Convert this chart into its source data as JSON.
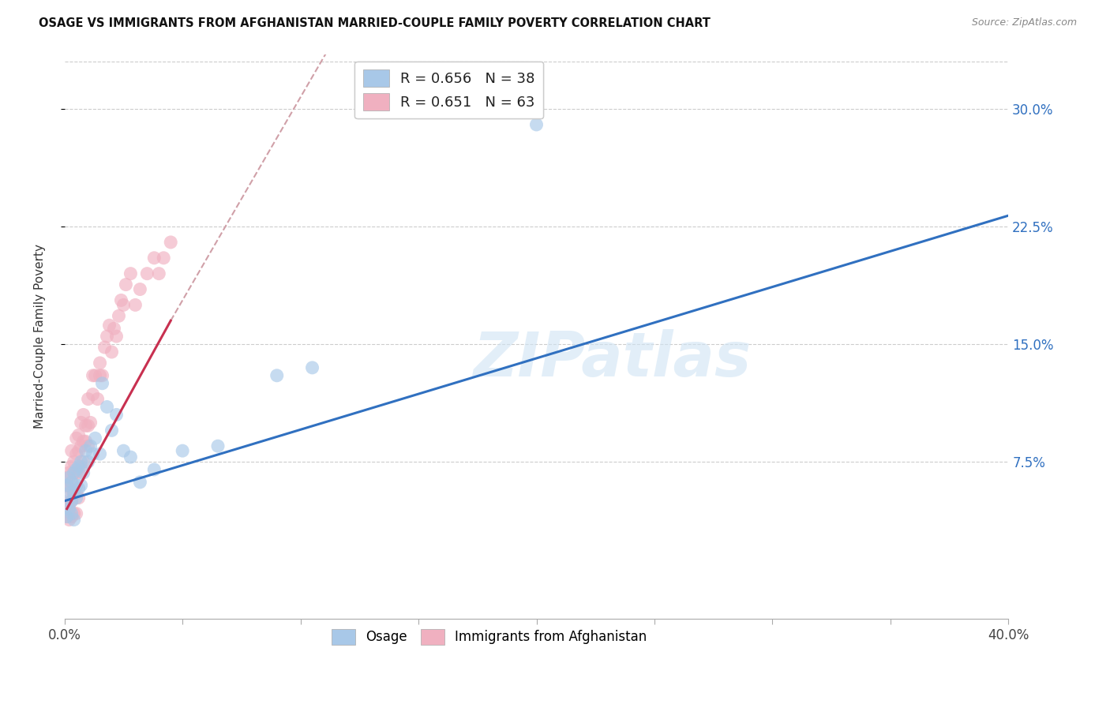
{
  "title": "OSAGE VS IMMIGRANTS FROM AFGHANISTAN MARRIED-COUPLE FAMILY POVERTY CORRELATION CHART",
  "source": "Source: ZipAtlas.com",
  "ylabel": "Married-Couple Family Poverty",
  "xlim": [
    0.0,
    0.4
  ],
  "ylim": [
    -0.025,
    0.335
  ],
  "yticks": [
    0.075,
    0.15,
    0.225,
    0.3
  ],
  "xticks": [
    0.0,
    0.4
  ],
  "xtick_labels": [
    "0.0%",
    "40.0%"
  ],
  "ytick_labels": [
    "7.5%",
    "15.0%",
    "22.5%",
    "30.0%"
  ],
  "legend_R1": "R = 0.656",
  "legend_N1": "N = 38",
  "legend_R2": "R = 0.651",
  "legend_N2": "N = 63",
  "color_blue": "#a8c8e8",
  "color_pink": "#f0b0c0",
  "color_trendline_blue": "#3070c0",
  "color_trendline_pink": "#c83050",
  "color_trendline_dashed": "#d0a0a8",
  "watermark": "ZIPatlas",
  "osage_x": [
    0.001,
    0.001,
    0.002,
    0.002,
    0.002,
    0.003,
    0.003,
    0.003,
    0.004,
    0.004,
    0.004,
    0.005,
    0.005,
    0.005,
    0.006,
    0.006,
    0.007,
    0.007,
    0.008,
    0.009,
    0.01,
    0.011,
    0.012,
    0.013,
    0.015,
    0.016,
    0.018,
    0.02,
    0.022,
    0.025,
    0.028,
    0.032,
    0.038,
    0.05,
    0.065,
    0.09,
    0.105,
    0.2
  ],
  "osage_y": [
    0.04,
    0.06,
    0.045,
    0.055,
    0.065,
    0.042,
    0.05,
    0.062,
    0.055,
    0.068,
    0.038,
    0.052,
    0.06,
    0.07,
    0.058,
    0.072,
    0.06,
    0.075,
    0.068,
    0.082,
    0.075,
    0.085,
    0.08,
    0.09,
    0.08,
    0.125,
    0.11,
    0.095,
    0.105,
    0.082,
    0.078,
    0.062,
    0.07,
    0.082,
    0.085,
    0.13,
    0.135,
    0.29
  ],
  "afghan_x": [
    0.001,
    0.001,
    0.001,
    0.001,
    0.002,
    0.002,
    0.002,
    0.002,
    0.003,
    0.003,
    0.003,
    0.003,
    0.003,
    0.004,
    0.004,
    0.004,
    0.004,
    0.005,
    0.005,
    0.005,
    0.005,
    0.005,
    0.006,
    0.006,
    0.006,
    0.006,
    0.007,
    0.007,
    0.007,
    0.008,
    0.008,
    0.008,
    0.009,
    0.009,
    0.01,
    0.01,
    0.01,
    0.011,
    0.012,
    0.012,
    0.013,
    0.014,
    0.015,
    0.015,
    0.016,
    0.017,
    0.018,
    0.019,
    0.02,
    0.021,
    0.022,
    0.023,
    0.024,
    0.025,
    0.026,
    0.028,
    0.03,
    0.032,
    0.035,
    0.038,
    0.04,
    0.042,
    0.045
  ],
  "afghan_y": [
    0.04,
    0.05,
    0.06,
    0.065,
    0.038,
    0.048,
    0.058,
    0.068,
    0.04,
    0.05,
    0.062,
    0.072,
    0.082,
    0.042,
    0.055,
    0.068,
    0.075,
    0.042,
    0.055,
    0.068,
    0.08,
    0.09,
    0.052,
    0.068,
    0.082,
    0.092,
    0.072,
    0.085,
    0.1,
    0.075,
    0.088,
    0.105,
    0.088,
    0.098,
    0.085,
    0.098,
    0.115,
    0.1,
    0.118,
    0.13,
    0.13,
    0.115,
    0.138,
    0.13,
    0.13,
    0.148,
    0.155,
    0.162,
    0.145,
    0.16,
    0.155,
    0.168,
    0.178,
    0.175,
    0.188,
    0.195,
    0.175,
    0.185,
    0.195,
    0.205,
    0.195,
    0.205,
    0.215
  ],
  "blue_line_x": [
    0.0,
    0.4
  ],
  "blue_line_y": [
    0.05,
    0.232
  ],
  "pink_line_x": [
    0.001,
    0.045
  ],
  "pink_line_y": [
    0.045,
    0.165
  ],
  "dashed_line_x": [
    0.045,
    0.155
  ],
  "dashed_line_y": [
    0.165,
    0.45
  ]
}
